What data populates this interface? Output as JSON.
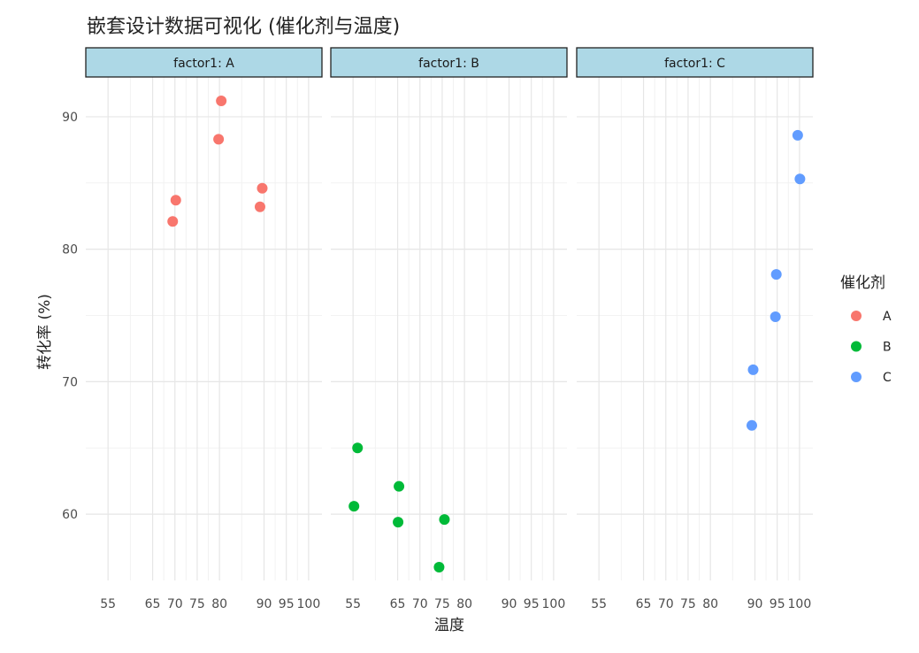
{
  "chart_data": {
    "type": "scatter",
    "title": "嵌套设计数据可视化 (催化剂与温度)",
    "xlabel": "温度",
    "ylabel": "转化率 (%)",
    "xlim": [
      50,
      103
    ],
    "ylim": [
      55,
      93
    ],
    "x_ticks": [
      55,
      65,
      70,
      75,
      80,
      90,
      95,
      100
    ],
    "y_ticks": [
      60,
      70,
      80,
      90
    ],
    "facets": [
      {
        "label": "factor1: A",
        "catalyst": "A",
        "points": [
          {
            "x": 69.5,
            "y": 82.1
          },
          {
            "x": 70.2,
            "y": 83.7
          },
          {
            "x": 79.8,
            "y": 88.3
          },
          {
            "x": 80.4,
            "y": 91.2
          },
          {
            "x": 89.1,
            "y": 83.2
          },
          {
            "x": 89.6,
            "y": 84.6
          }
        ]
      },
      {
        "label": "factor1: B",
        "catalyst": "B",
        "points": [
          {
            "x": 55.2,
            "y": 60.6
          },
          {
            "x": 56.0,
            "y": 65.0
          },
          {
            "x": 65.1,
            "y": 59.4
          },
          {
            "x": 65.3,
            "y": 62.1
          },
          {
            "x": 74.3,
            "y": 56.0
          },
          {
            "x": 75.5,
            "y": 59.6
          }
        ]
      },
      {
        "label": "factor1: C",
        "catalyst": "C",
        "points": [
          {
            "x": 89.3,
            "y": 66.7
          },
          {
            "x": 89.6,
            "y": 70.9
          },
          {
            "x": 94.6,
            "y": 74.9
          },
          {
            "x": 94.8,
            "y": 78.1
          },
          {
            "x": 99.6,
            "y": 88.6
          },
          {
            "x": 100.1,
            "y": 85.3
          }
        ]
      }
    ],
    "legend": {
      "title": "催化剂",
      "position": "right",
      "items": [
        {
          "label": "A",
          "color": "#F8766D"
        },
        {
          "label": "B",
          "color": "#00BA38"
        },
        {
          "label": "C",
          "color": "#619CFF"
        }
      ]
    },
    "strip_color": "#ADD8E6",
    "grid": true
  }
}
